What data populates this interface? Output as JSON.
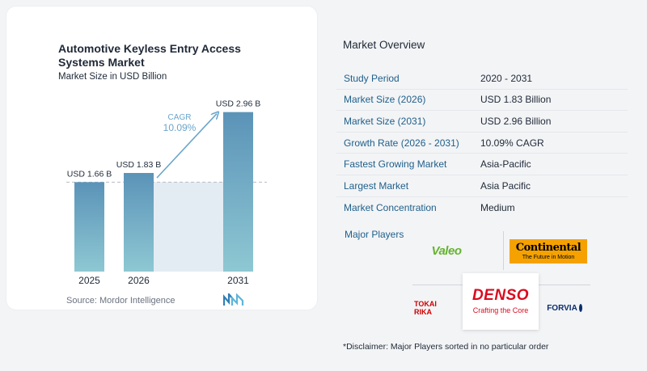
{
  "chart_data": {
    "type": "bar",
    "title": "Automotive Keyless Entry Access Systems Market",
    "subtitle": "Market Size in USD Billion",
    "categories": [
      "2025",
      "2026",
      "2031"
    ],
    "values": [
      1.66,
      1.83,
      2.96
    ],
    "data_labels": [
      "USD 1.66 B",
      "USD 1.83 B",
      "USD 2.96 B"
    ],
    "cagr_label": "CAGR",
    "cagr_value": "10.09%",
    "ylim": [
      0,
      3.3
    ],
    "colors": {
      "bar_top": "#5b93b8",
      "bar_bottom": "#8ec8d3",
      "shade": "#e3ecf3",
      "arrow": "#6aa5cc",
      "dashed": "#b6bcc4"
    },
    "legend": "none",
    "grid": false
  },
  "source": "Source:  Mordor Intelligence",
  "overview": {
    "title": "Market Overview",
    "rows": [
      {
        "label": "Study Period",
        "value": "2020 - 2031"
      },
      {
        "label": "Market Size (2026)",
        "value": "USD 1.83 Billion"
      },
      {
        "label": "Market Size (2031)",
        "value": "USD 2.96 Billion"
      },
      {
        "label": "Growth Rate (2026 - 2031)",
        "value": "10.09% CAGR"
      },
      {
        "label": "Fastest Growing Market",
        "value": "Asia-Pacific"
      },
      {
        "label": "Largest Market",
        "value": "Asia Pacific"
      },
      {
        "label": "Market Concentration",
        "value": "Medium"
      }
    ],
    "players_title": "Major Players",
    "players": {
      "valeo": "Valeo",
      "continental": "Continental",
      "continental_tagline": "The Future in Motion",
      "denso": "DENSO",
      "denso_tagline": "Crafting the Core",
      "tokai_rika": "TOKAI RIKA",
      "forvia": "FORVIA"
    },
    "disclaimer": "*Disclaimer: Major Players sorted in no particular order"
  }
}
